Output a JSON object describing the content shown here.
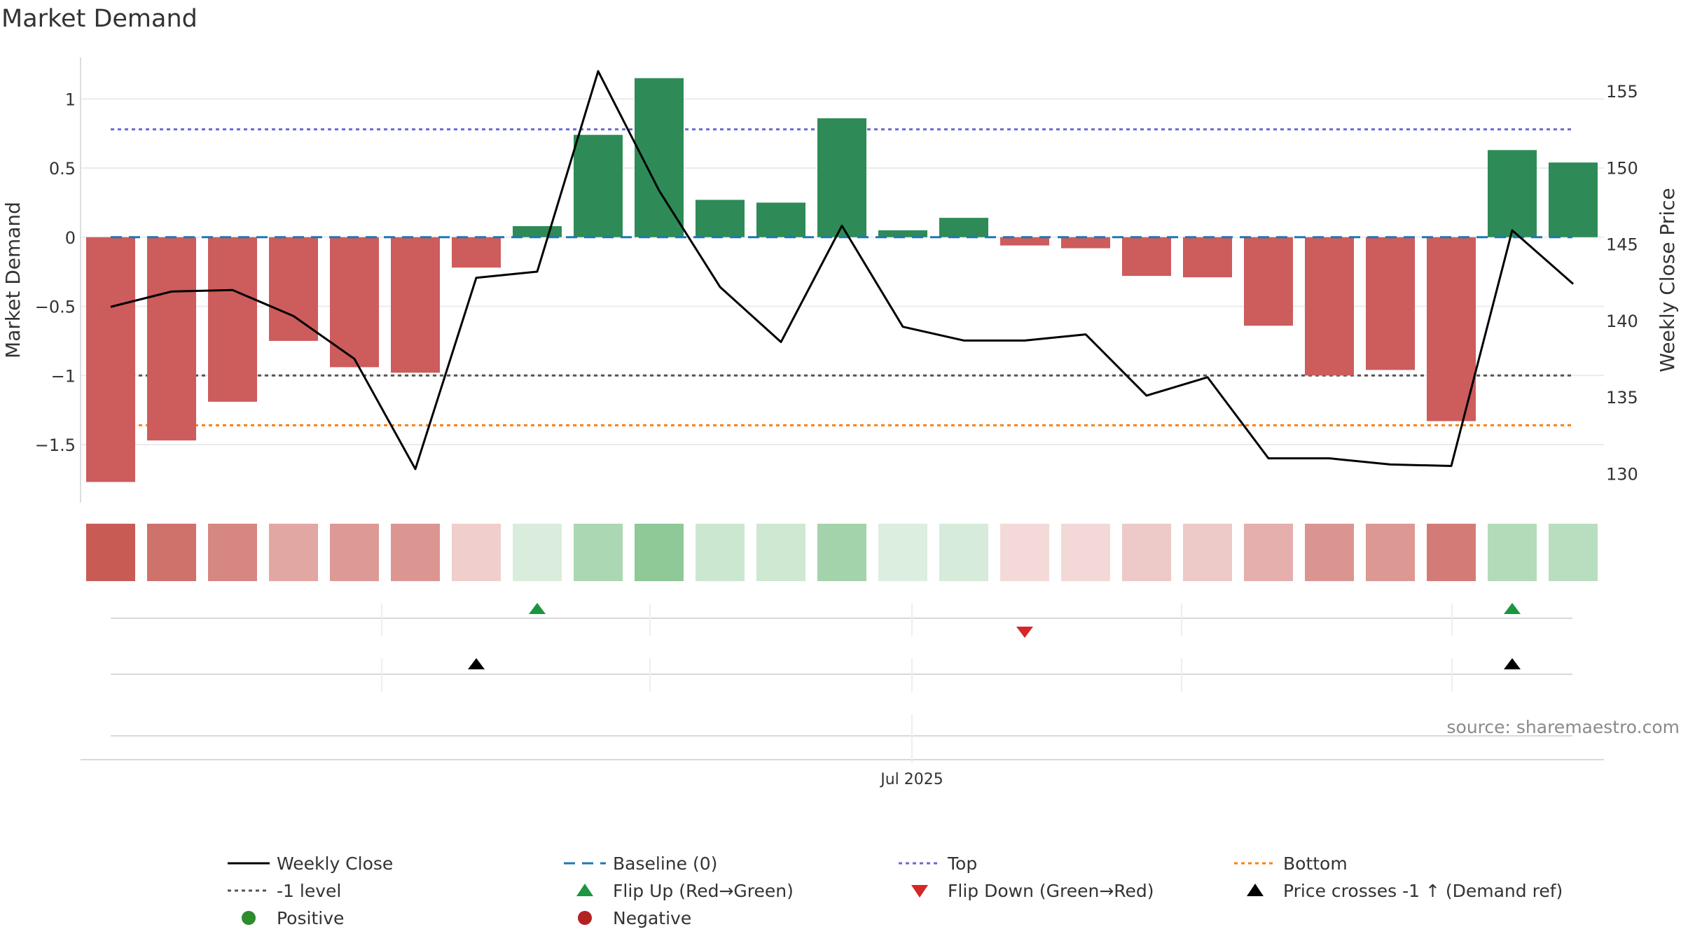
{
  "chart_data": {
    "type": "bar",
    "title": "Market Demand",
    "ylabel_left": "Market Demand",
    "ylabel_right": "Weekly Close Price",
    "x_tick_label": "Jul 2025",
    "source": "source: sharemaestro.com",
    "ylim_left": [
      -1.92,
      1.3
    ],
    "ylim_right": [
      128.1,
      157.2
    ],
    "left_ticks": [
      1,
      0.5,
      0,
      -0.5,
      -1,
      -1.5
    ],
    "left_tick_labels": [
      "1",
      "0.5",
      "0",
      "−0.5",
      "−1",
      "−1.5"
    ],
    "right_ticks": [
      155,
      150,
      145,
      140,
      135,
      130
    ],
    "right_tick_labels": [
      "155",
      "150",
      "145",
      "140",
      "135",
      "130"
    ],
    "demand": [
      -1.77,
      -1.47,
      -1.19,
      -0.75,
      -0.94,
      -0.98,
      -0.22,
      0.08,
      0.74,
      1.15,
      0.27,
      0.25,
      0.86,
      0.05,
      0.14,
      -0.06,
      -0.08,
      -0.28,
      -0.29,
      -0.64,
      -1.0,
      -0.96,
      -1.33,
      0.63,
      0.54
    ],
    "weekly_close": [
      140.9,
      141.9,
      142.0,
      140.3,
      137.5,
      130.3,
      142.8,
      143.2,
      156.3,
      148.5,
      142.2,
      138.6,
      146.2,
      139.6,
      138.7,
      138.7,
      139.1,
      135.1,
      136.3,
      131.0,
      131.0,
      130.6,
      130.5,
      145.9,
      142.4
    ],
    "reference_lines": {
      "baseline": 0,
      "top": 0.78,
      "bottom": -1.36,
      "minus_one_level": -1
    },
    "flip_up_weeks": [
      7,
      23
    ],
    "flip_down_weeks": [
      15
    ],
    "price_cross_weeks": [
      6,
      23
    ],
    "colors": {
      "positive": "#2e8b57",
      "negative": "#cd5c5c",
      "price_line": "#000000",
      "baseline": "#1f77b4",
      "top": "#6a6ad0",
      "bottom": "#ff7f0e",
      "minus_one": "#555555",
      "flip_up": "#1a9641",
      "flip_down": "#d62728",
      "grid": "#ebebeb"
    },
    "legend": {
      "weekly_close": "Weekly Close",
      "baseline": "Baseline (0)",
      "top": "Top",
      "bottom": "Bottom",
      "minus_one": "-1 level",
      "flip_up": "Flip Up (Red→Green)",
      "flip_down": "Flip Down (Green→Red)",
      "price_cross": "Price crosses -1 ↑ (Demand ref)",
      "positive": "Positive",
      "negative": "Negative"
    }
  }
}
